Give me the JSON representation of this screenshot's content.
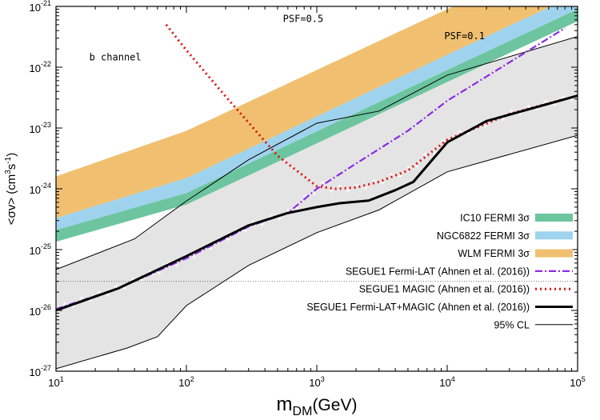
{
  "chart_data": {
    "type": "line",
    "title": "",
    "xlabel": {
      "main": "m",
      "sub": "DM",
      "unit": "(GeV)"
    },
    "ylabel": {
      "prefix": "<σv> (cm",
      "sup1": "3",
      "mid": "s",
      "sup2": "-1",
      "suffix": ")"
    },
    "xscale": "log",
    "yscale": "log",
    "xlim": [
      10,
      100000
    ],
    "ylim": [
      1e-27,
      1e-21
    ],
    "x_ticks": [
      {
        "base": "10",
        "exp": "1",
        "value": 10
      },
      {
        "base": "10",
        "exp": "2",
        "value": 100
      },
      {
        "base": "10",
        "exp": "3",
        "value": 1000
      },
      {
        "base": "10",
        "exp": "4",
        "value": 10000
      },
      {
        "base": "10",
        "exp": "5",
        "value": 100000
      }
    ],
    "y_ticks": [
      {
        "base": "10",
        "exp": "-27",
        "value": 1e-27
      },
      {
        "base": "10",
        "exp": "-26",
        "value": 1e-26
      },
      {
        "base": "10",
        "exp": "-25",
        "value": 1e-25
      },
      {
        "base": "10",
        "exp": "-24",
        "value": 1e-24
      },
      {
        "base": "10",
        "exp": "-23",
        "value": 1e-23
      },
      {
        "base": "10",
        "exp": "-22",
        "value": 1e-22
      },
      {
        "base": "10",
        "exp": "-21",
        "value": 1e-21
      }
    ],
    "annotations": [
      {
        "text": "b channel",
        "x": 18,
        "y": 1.3e-22
      },
      {
        "text": "PSF=0.5",
        "x": 550,
        "y": 5.5e-22
      },
      {
        "text": "PSF=0.1",
        "x": 9500,
        "y": 2.9e-22
      }
    ],
    "reference_line": {
      "y": 3e-26,
      "style": "dotted"
    },
    "bands": [
      {
        "name": "WLM FERMI 3σ",
        "color": "#f0c070",
        "x": [
          10,
          100,
          1000,
          10000,
          100000
        ],
        "lower": [
          3.3e-25,
          1.5e-24,
          1.55e-23,
          1.6e-22,
          1.6e-21
        ],
        "upper": [
          1.6e-24,
          9e-24,
          9e-23,
          9e-22,
          9e-21
        ]
      },
      {
        "name": "NGC6822 FERMI 3σ",
        "color": "#9fd3ed",
        "x": [
          10,
          100,
          1000,
          10000,
          100000
        ],
        "lower": [
          2.1e-25,
          8.5e-25,
          8.8e-24,
          9e-23,
          9e-22
        ],
        "upper": [
          3.3e-25,
          1.5e-24,
          1.55e-23,
          1.6e-22,
          1.6e-21
        ]
      },
      {
        "name": "IC10 FERMI 3σ",
        "color": "#6cc59f",
        "x": [
          10,
          100,
          1000,
          10000,
          100000
        ],
        "lower": [
          1.35e-25,
          5.5e-25,
          5.6e-24,
          5.7e-23,
          5.7e-22
        ],
        "upper": [
          2.1e-25,
          8.5e-25,
          8.8e-24,
          9e-23,
          9e-22
        ]
      }
    ],
    "cl_band": {
      "name": "95% CL",
      "fill": "#e4e4e4",
      "line_color": "#000000",
      "upper": {
        "x": [
          10,
          40,
          100,
          300,
          1000,
          3000,
          10000,
          100000
        ],
        "y": [
          4.7e-26,
          1.5e-25,
          6.3e-25,
          3e-24,
          1.2e-23,
          1.9e-23,
          7.4e-23,
          3.2e-22
        ]
      },
      "lower": {
        "x": [
          10,
          35,
          60,
          100,
          300,
          1000,
          3000,
          10000,
          100000
        ],
        "y": [
          1.1e-27,
          2.4e-27,
          3.7e-27,
          1.2e-26,
          5.5e-26,
          1.9e-25,
          4.5e-25,
          1.9e-24,
          7.6e-24
        ]
      }
    },
    "series": [
      {
        "name": "SEGUE1 Fermi-LAT (Ahnen et al. (2016))",
        "color": "#8a2be2",
        "style": "dashdot",
        "width": 2.2,
        "x": [
          10,
          30,
          100,
          300,
          600,
          1000,
          2000,
          5000,
          10000,
          30000,
          80000
        ],
        "y": [
          1.05e-26,
          2.3e-26,
          7.2e-26,
          2.4e-25,
          4e-25,
          1e-24,
          2.6e-24,
          9e-24,
          2.8e-23,
          1.2e-22,
          4.4e-22
        ]
      },
      {
        "name": "SEGUE1 MAGIC (Ahnen et al. (2016))",
        "color": "#dd1111",
        "style": "dotted",
        "width": 3,
        "x": [
          70,
          100,
          200,
          500,
          800,
          1000,
          1400,
          2000,
          3000,
          5000,
          10000,
          30000,
          100000
        ],
        "y": [
          5e-22,
          1.9e-22,
          3.3e-23,
          3.5e-24,
          1.6e-24,
          1.1e-24,
          1e-24,
          1.05e-24,
          1.3e-24,
          2e-24,
          6.4e-24,
          1.7e-23,
          3.4e-23
        ]
      },
      {
        "name": "SEGUE1 Fermi-LAT+MAGIC (Ahnen et al. (2016))",
        "color": "#000000",
        "style": "solid",
        "width": 3,
        "x": [
          10,
          30,
          100,
          300,
          600,
          1000,
          1500,
          2500,
          4000,
          5500,
          10000,
          20000,
          100000
        ],
        "y": [
          1e-26,
          2.3e-26,
          7.8e-26,
          2.5e-25,
          4e-25,
          5e-25,
          5.8e-25,
          6.4e-25,
          9.5e-25,
          1.3e-24,
          5.8e-24,
          1.3e-23,
          3.4e-23
        ]
      }
    ],
    "legend": {
      "placement": "right",
      "entries": [
        {
          "label": "IC10 FERMI 3σ",
          "kind": "swatch",
          "color": "#6cc59f"
        },
        {
          "label": "NGC6822 FERMI 3σ",
          "kind": "swatch",
          "color": "#9fd3ed"
        },
        {
          "label": "WLM FERMI 3σ",
          "kind": "swatch",
          "color": "#f0c070"
        },
        {
          "label": "SEGUE1 Fermi-LAT (Ahnen et al. (2016))",
          "kind": "line",
          "color": "#8a2be2",
          "style": "dashdot",
          "width": 2.2
        },
        {
          "label": "SEGUE1 MAGIC (Ahnen et al. (2016))",
          "kind": "line",
          "color": "#dd1111",
          "style": "dotted",
          "width": 3
        },
        {
          "label": "SEGUE1 Fermi-LAT+MAGIC (Ahnen et al. (2016))",
          "kind": "line",
          "color": "#000000",
          "style": "solid",
          "width": 3
        },
        {
          "label": "95% CL",
          "kind": "line",
          "color": "#000000",
          "style": "solid",
          "width": 1
        }
      ]
    }
  }
}
